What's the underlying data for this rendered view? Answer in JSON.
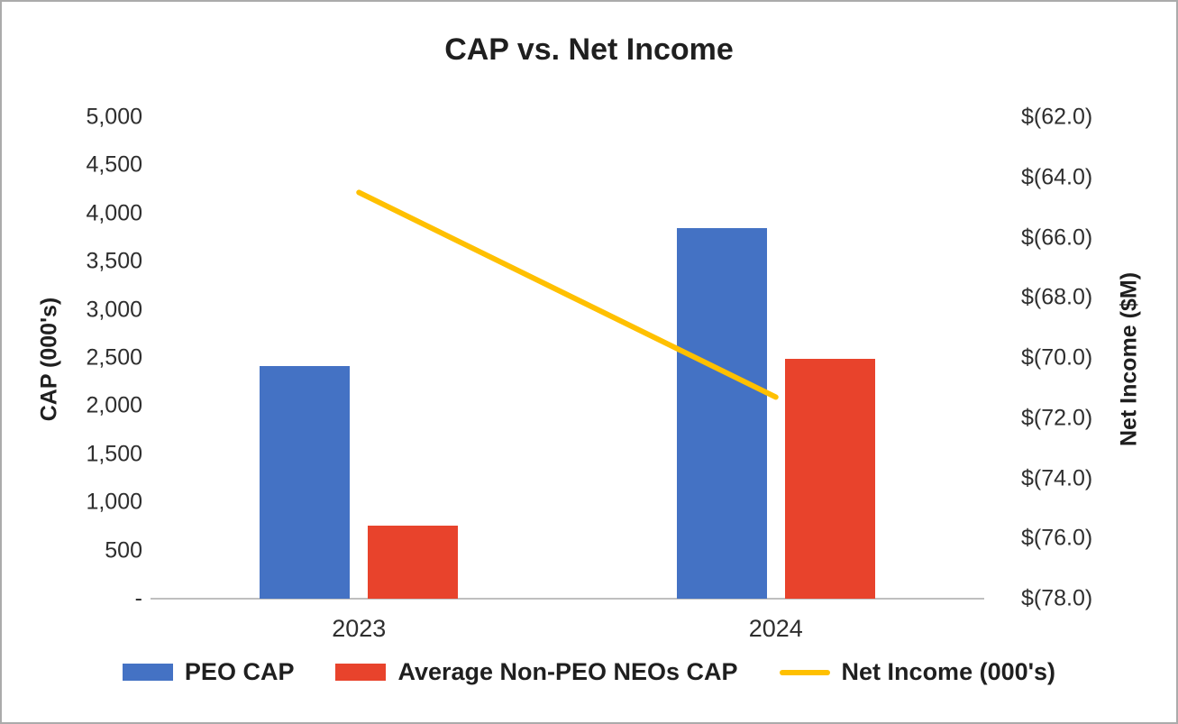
{
  "chart_data": {
    "type": "bar+line",
    "title": "CAP vs. Net Income",
    "categories": [
      "2023",
      "2024"
    ],
    "series": [
      {
        "name": "PEO CAP",
        "type": "bar",
        "axis": "left",
        "color": "#4472C4",
        "values": [
          2420,
          3850
        ]
      },
      {
        "name": "Average Non-PEO NEOs CAP",
        "type": "bar",
        "axis": "left",
        "color": "#E8432C",
        "values": [
          760,
          2490
        ]
      },
      {
        "name": "Net Income (000's)",
        "type": "line",
        "axis": "right",
        "color": "#FFC000",
        "values": [
          -64.5,
          -71.3
        ]
      }
    ],
    "left_axis": {
      "label": "CAP (000's)",
      "min": 0,
      "max": 5000,
      "tick_step": 500,
      "tick_labels": [
        "-",
        "500",
        "1,000",
        "1,500",
        "2,000",
        "2,500",
        "3,000",
        "3,500",
        "4,000",
        "4,500",
        "5,000"
      ]
    },
    "right_axis": {
      "label": "Net Income ($M)",
      "min": -78,
      "max": -62,
      "tick_step": 2,
      "tick_labels": [
        "$(78.0)",
        "$(76.0)",
        "$(74.0)",
        "$(72.0)",
        "$(70.0)",
        "$(68.0)",
        "$(66.0)",
        "$(64.0)",
        "$(62.0)"
      ]
    },
    "grid": false,
    "legend_position": "bottom",
    "colors": {
      "axis_line": "#BFBFBF",
      "text": "#1f1f1f",
      "border": "#ABABAB"
    }
  }
}
